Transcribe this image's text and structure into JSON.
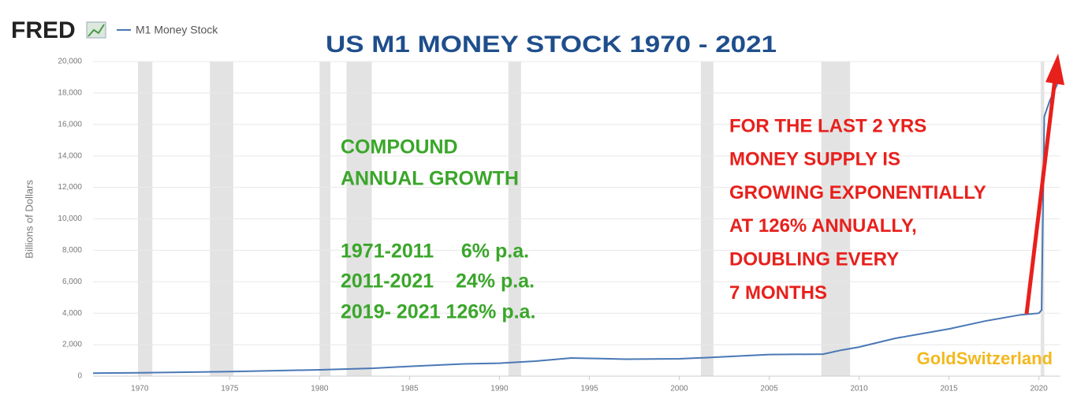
{
  "chart_data": {
    "type": "line",
    "logo": "FRED",
    "title": "US M1 MONEY STOCK  1970 - 2021",
    "y_label": "Billions of Dollars",
    "x": [
      1967.4,
      1970,
      1973,
      1975,
      1978,
      1980,
      1983,
      1985,
      1988,
      1990,
      1992,
      1994,
      1995,
      1997,
      2000,
      2002,
      2005,
      2008,
      2009,
      2010,
      2012,
      2015,
      2017,
      2019,
      2020.0,
      2020.15,
      2020.3,
      2020.6,
      2021,
      2021.2
    ],
    "series": [
      {
        "name": "M1 Money Stock",
        "color": "#4a78b5",
        "values": [
          190,
          210,
          260,
          290,
          360,
          400,
          500,
          620,
          780,
          820,
          950,
          1150,
          1130,
          1080,
          1100,
          1200,
          1370,
          1400,
          1650,
          1850,
          2400,
          3000,
          3500,
          3900,
          4000,
          4200,
          16500,
          17500,
          18500,
          19300
        ]
      }
    ],
    "shaded_ranges": [
      [
        1969.9,
        1970.7
      ],
      [
        1973.9,
        1975.2
      ],
      [
        1980.0,
        1980.6
      ],
      [
        1981.5,
        1982.9
      ],
      [
        1990.5,
        1991.2
      ],
      [
        2001.2,
        2001.9
      ],
      [
        2007.9,
        2009.5
      ],
      [
        2020.1,
        2020.3
      ]
    ],
    "xlim": [
      1967.4,
      2021.2
    ],
    "xticks": [
      1970,
      1975,
      1980,
      1985,
      1990,
      1995,
      2000,
      2005,
      2010,
      2015,
      2020
    ],
    "ylim": [
      0,
      20000
    ],
    "yticks": [
      0,
      {
        "value": 2000,
        "label": "2,000"
      },
      {
        "value": 4000,
        "label": "4,000"
      },
      {
        "value": 6000,
        "label": "6,000"
      },
      {
        "value": 8000,
        "label": "8,000"
      },
      {
        "value": 10000,
        "label": "10,000"
      },
      {
        "value": 12000,
        "label": "12,000"
      },
      {
        "value": 14000,
        "label": "14,000"
      },
      {
        "value": 16000,
        "label": "16,000"
      },
      {
        "value": 18000,
        "label": "18,000"
      },
      {
        "value": 20000,
        "label": "20,000"
      }
    ],
    "grid": true,
    "green_text": [
      "COMPOUND",
      "ANNUAL GROWTH",
      "1971-2011     6% p.a.",
      "2011-2021    24% p.a.",
      "2019- 2021 126% p.a."
    ],
    "red_text": [
      "FOR THE LAST 2 YRS",
      "MONEY SUPPLY IS",
      "GROWING EXPONENTIALLY",
      "AT 126% ANNUALLY,",
      "DOUBLING EVERY",
      "7 MONTHS"
    ],
    "watermark": "GoldSwitzerland"
  }
}
